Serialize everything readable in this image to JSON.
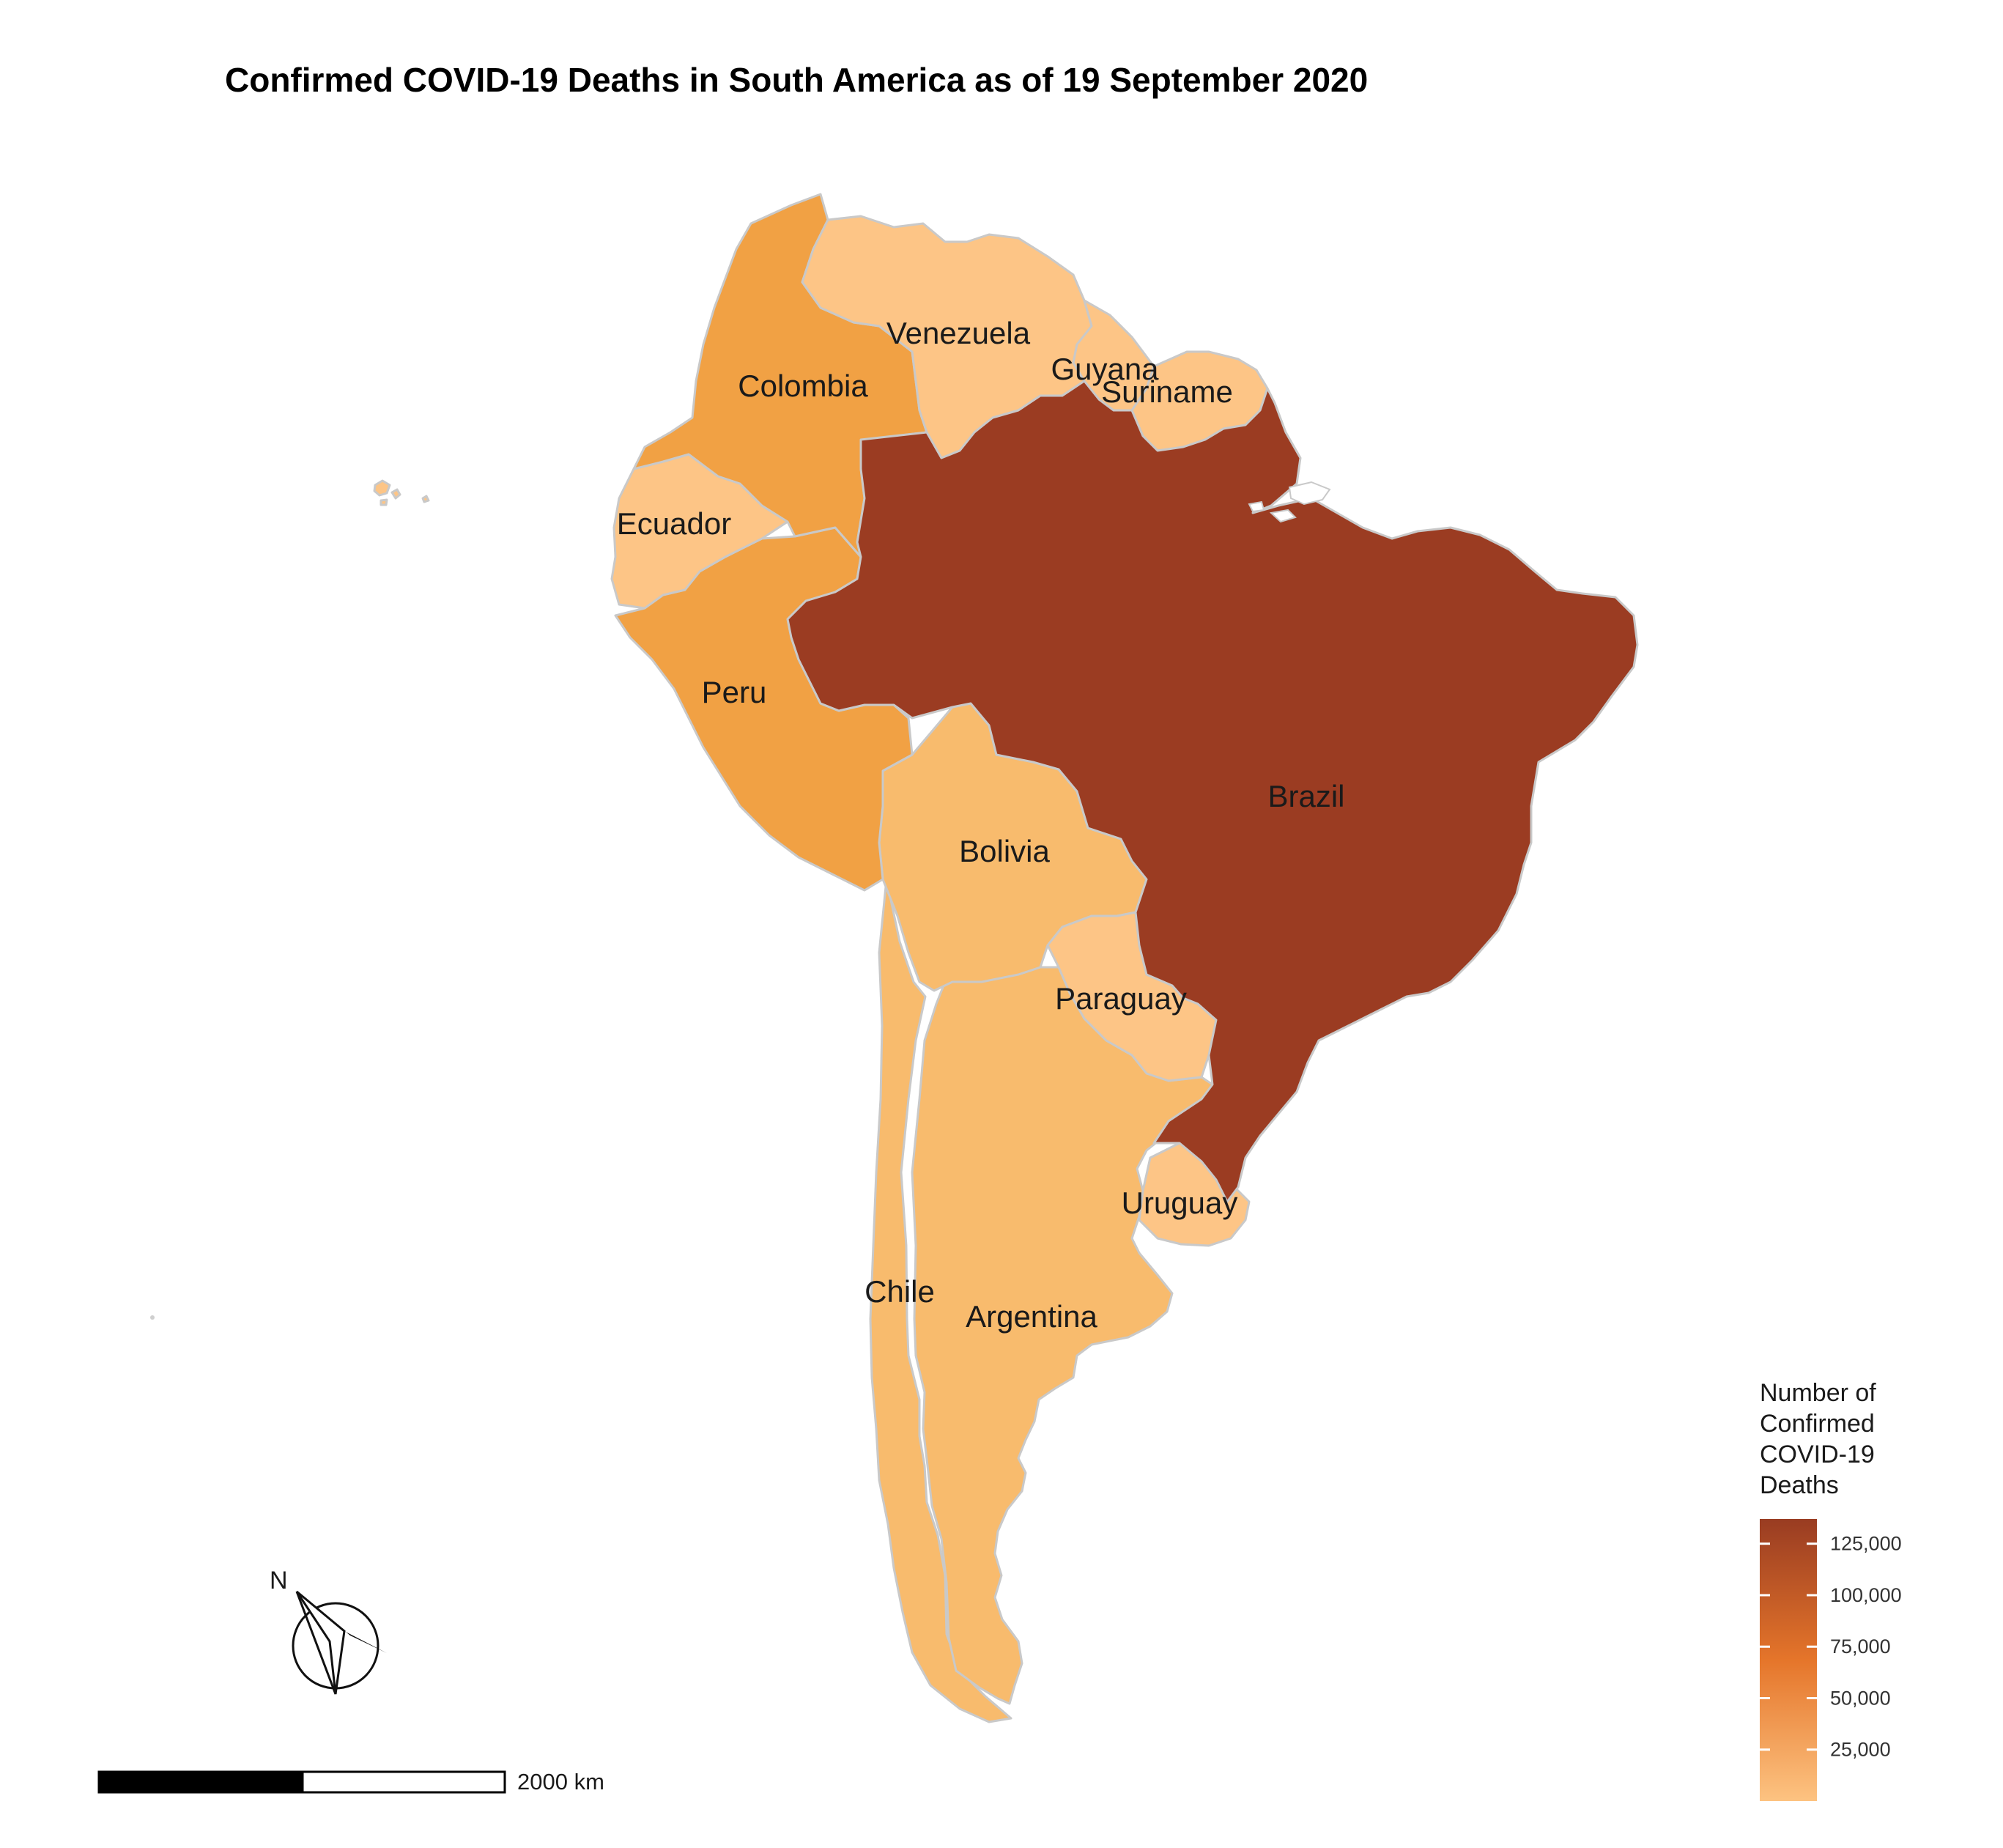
{
  "title": "Confirmed COVID-19 Deaths in South America as of 19 September 2020",
  "legend": {
    "title_lines": [
      "Number of",
      "Confirmed",
      "COVID-19",
      "Deaths"
    ],
    "min": 0,
    "max": 137000,
    "ticks": [
      {
        "value": 25000,
        "label": "25,000"
      },
      {
        "value": 50000,
        "label": "50,000"
      },
      {
        "value": 75000,
        "label": "75,000"
      },
      {
        "value": 100000,
        "label": "100,000"
      },
      {
        "value": 125000,
        "label": "125,000"
      }
    ],
    "colors": {
      "low": "#fdc381",
      "mid": "#e5752a",
      "high": "#993c22"
    }
  },
  "colors": {
    "brazil": "#9b3c22",
    "colombia": "#f1a144",
    "peru": "#f1a144",
    "light": "#f8bb6d",
    "lightest": "#fdc586",
    "border": "#c9c9c9"
  },
  "countries": [
    {
      "key": "venezuela",
      "label": "Venezuela"
    },
    {
      "key": "colombia",
      "label": "Colombia"
    },
    {
      "key": "guyana",
      "label": "Guyana"
    },
    {
      "key": "suriname",
      "label": "Suriname"
    },
    {
      "key": "ecuador",
      "label": "Ecuador"
    },
    {
      "key": "peru",
      "label": "Peru"
    },
    {
      "key": "brazil",
      "label": "Brazil"
    },
    {
      "key": "bolivia",
      "label": "Bolivia"
    },
    {
      "key": "paraguay",
      "label": "Paraguay"
    },
    {
      "key": "uruguay",
      "label": "Uruguay"
    },
    {
      "key": "chile",
      "label": "Chile"
    },
    {
      "key": "argentina",
      "label": "Argentina"
    }
  ],
  "scale_bar": {
    "label": "2000 km"
  },
  "north_arrow": {
    "label": "N"
  }
}
